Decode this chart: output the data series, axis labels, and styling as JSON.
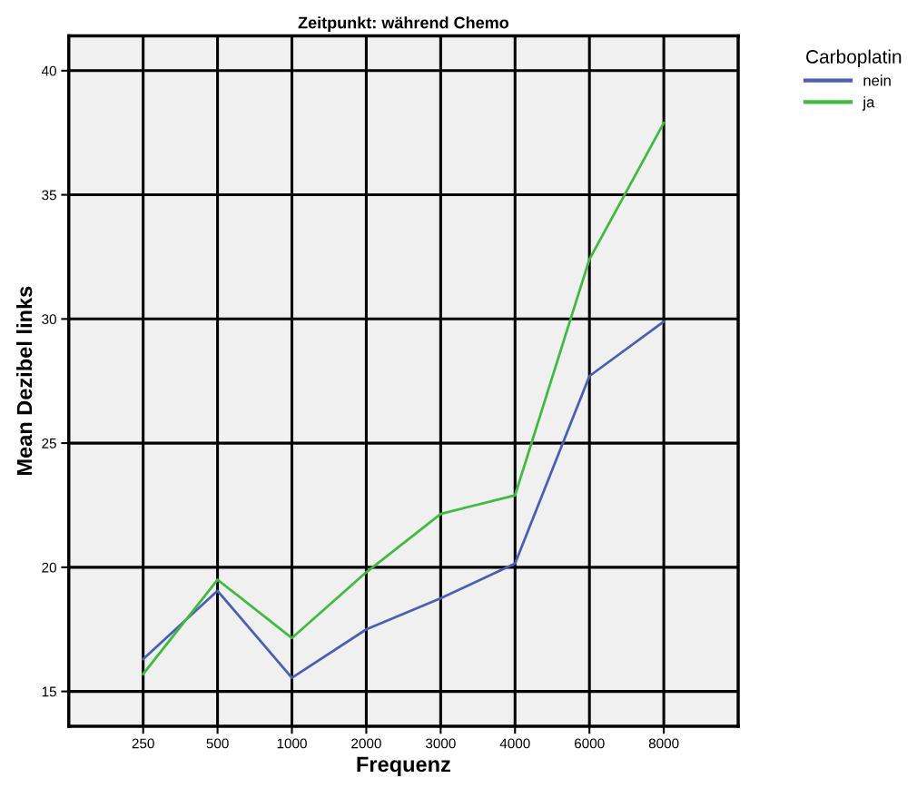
{
  "chart_data": {
    "type": "line",
    "title": "Zeitpunkt: während Chemo",
    "xlabel": "Frequenz",
    "ylabel": "Mean Dezibel links",
    "legend_title": "Carboplatin",
    "categories": [
      "250",
      "500",
      "1000",
      "2000",
      "3000",
      "4000",
      "6000",
      "8000"
    ],
    "series": [
      {
        "name": "nein",
        "color": "#4a5fb4",
        "values": [
          16.3,
          19.05,
          15.55,
          17.5,
          18.75,
          20.15,
          27.7,
          29.9
        ]
      },
      {
        "name": "ja",
        "color": "#3fbb3f",
        "values": [
          15.7,
          19.5,
          17.15,
          19.8,
          22.15,
          22.9,
          32.4,
          37.9
        ]
      }
    ],
    "ylim": [
      13.6,
      41.4
    ],
    "yticks": [
      15,
      20,
      25,
      30,
      35,
      40
    ],
    "grid": true,
    "legend": "top right",
    "marker": "none",
    "line_style": "solid"
  }
}
